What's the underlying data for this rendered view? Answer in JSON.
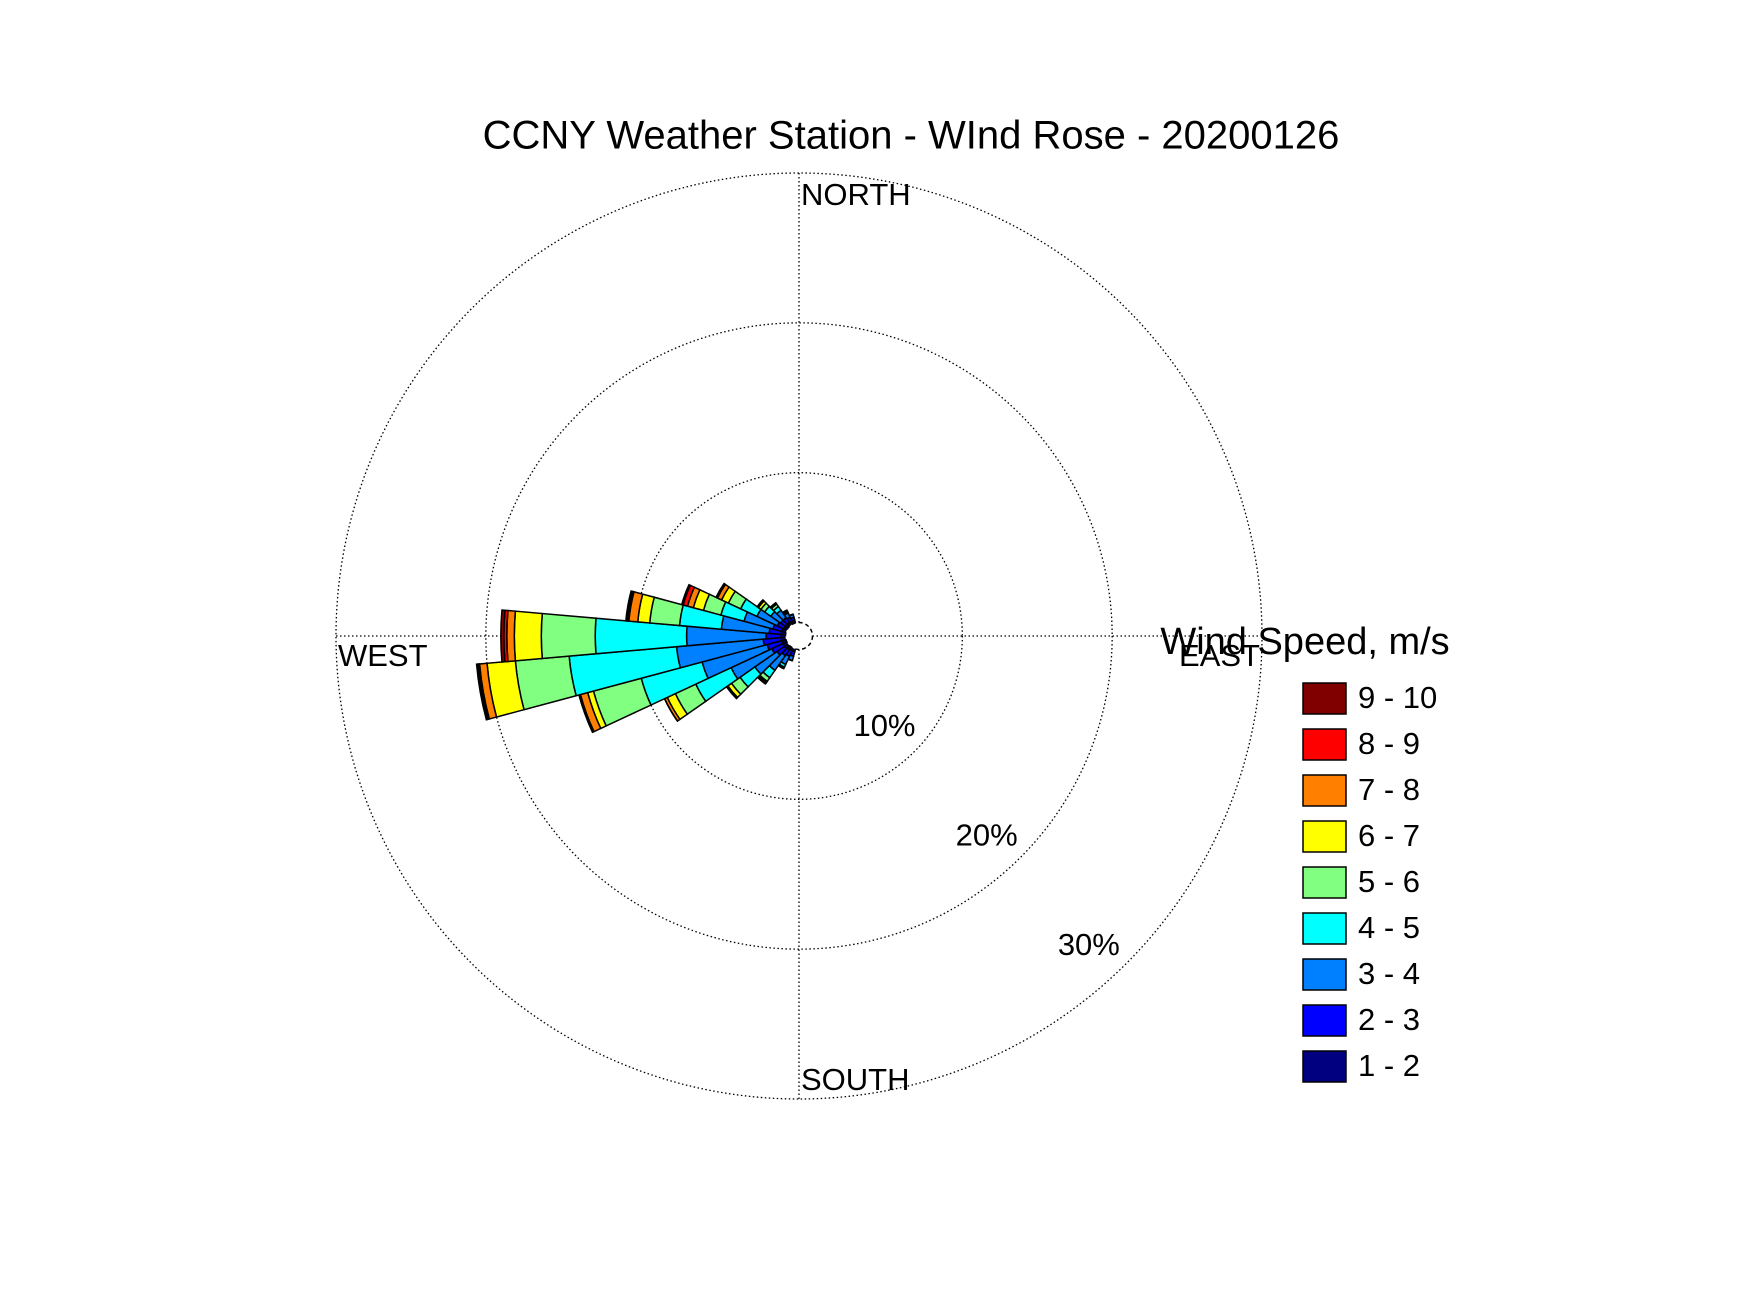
{
  "chart_data": {
    "type": "windrose",
    "title": "CCNY Weather Station - WInd Rose - 20200126",
    "x": [
      200,
      210,
      220,
      230,
      240,
      250,
      260,
      270,
      280,
      290,
      300,
      310,
      320,
      330,
      340
    ],
    "angular_ticks": [
      {
        "value": 0,
        "label": "NORTH"
      },
      {
        "value": 90,
        "label": "EAST"
      },
      {
        "value": 180,
        "label": "SOUTH"
      },
      {
        "value": 270,
        "label": "WEST"
      }
    ],
    "rlim": [
      0,
      30
    ],
    "rticks": [
      {
        "value": 10,
        "label": "10%"
      },
      {
        "value": 20,
        "label": "20%"
      },
      {
        "value": 30,
        "label": "30%"
      }
    ],
    "legend_title": "Wind Speed, m/s",
    "grid": true,
    "series": [
      {
        "name": "9 - 10",
        "color": "#800000",
        "values": [
          0,
          0,
          0,
          0,
          0,
          0,
          0.1,
          0.2,
          0.1,
          0.1,
          0,
          0,
          0,
          0,
          0
        ]
      },
      {
        "name": "8 - 9",
        "color": "#ff0000",
        "values": [
          0,
          0,
          0,
          0,
          0,
          0.1,
          0.1,
          0.2,
          0.1,
          0.3,
          0.1,
          0,
          0,
          0,
          0
        ]
      },
      {
        "name": "7 - 8",
        "color": "#ff8000",
        "values": [
          0,
          0,
          0.1,
          0.1,
          0.2,
          0.5,
          0.5,
          0.5,
          0.6,
          0.4,
          0.3,
          0.1,
          0,
          0,
          0
        ]
      },
      {
        "name": "6 - 7",
        "color": "#ffff00",
        "values": [
          0,
          0,
          0.1,
          0.3,
          0.6,
          0.4,
          1.9,
          1.8,
          0.8,
          0.7,
          0.5,
          0.2,
          0.1,
          0,
          0
        ]
      },
      {
        "name": "5 - 6",
        "color": "#80ff80",
        "values": [
          0,
          0.1,
          0.3,
          0.7,
          1.5,
          3.3,
          3.6,
          3.6,
          2.0,
          1.2,
          0.9,
          0.3,
          0.2,
          0.1,
          0
        ]
      },
      {
        "name": "4 - 5",
        "color": "#00ffff",
        "values": [
          0,
          0.2,
          0.6,
          1.2,
          2.6,
          4.2,
          7.2,
          6.1,
          2.8,
          1.6,
          1.2,
          0.5,
          0.3,
          0.1,
          0
        ]
      },
      {
        "name": "3 - 4",
        "color": "#0080ff",
        "values": [
          0.3,
          0.6,
          1.2,
          1.8,
          3.0,
          4.5,
          5.8,
          5.3,
          3.2,
          2.0,
          1.5,
          0.8,
          0.6,
          0.3,
          0.2
        ]
      },
      {
        "name": "2 - 3",
        "color": "#0000ff",
        "values": [
          0.3,
          0.4,
          0.5,
          0.6,
          0.8,
          1.0,
          1.2,
          1.0,
          0.8,
          0.6,
          0.5,
          0.4,
          0.4,
          0.3,
          0.2
        ]
      },
      {
        "name": "1 - 2",
        "color": "#000080",
        "values": [
          0.2,
          0.2,
          0.2,
          0.3,
          0.3,
          0.3,
          0.3,
          0.3,
          0.3,
          0.3,
          0.2,
          0.2,
          0.2,
          0.2,
          0.2
        ]
      }
    ]
  }
}
